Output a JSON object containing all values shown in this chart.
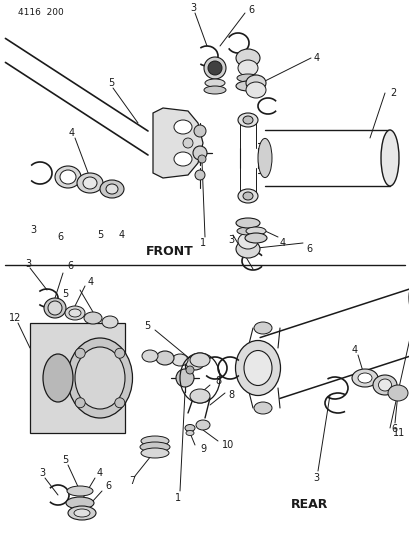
{
  "page_number": "4116  200",
  "background_color": "#ffffff",
  "line_color": "#1a1a1a",
  "text_color": "#1a1a1a",
  "front_label": "FRONT",
  "rear_label": "REAR",
  "fig_width": 4.1,
  "fig_height": 5.33,
  "dpi": 100,
  "font_size_label": 9,
  "font_size_number": 7,
  "font_size_page": 6.5
}
